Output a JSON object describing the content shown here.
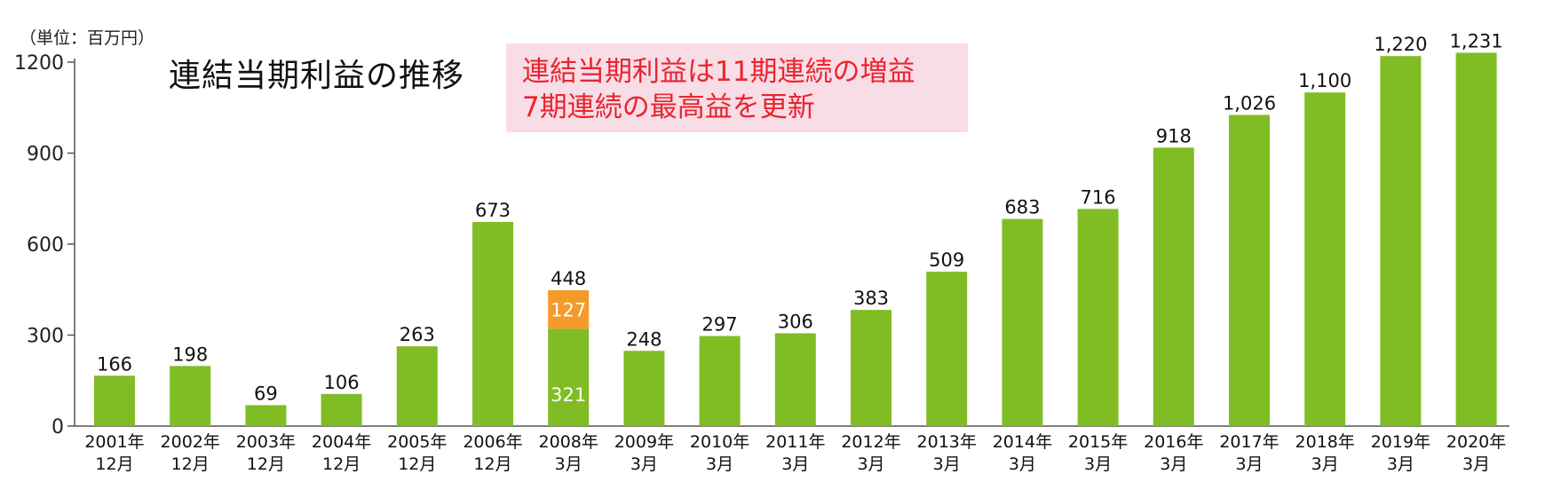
{
  "chart_data": {
    "type": "bar",
    "title": "連結当期利益の推移",
    "unit_label": "（単位：百万円）",
    "callout": [
      "連結当期利益は11期連続の増益",
      "7期連続の最高益を更新"
    ],
    "ylim": [
      0,
      1200
    ],
    "yticks": [
      0,
      300,
      600,
      900,
      1200
    ],
    "categories": [
      [
        "2001年",
        "12月"
      ],
      [
        "2002年",
        "12月"
      ],
      [
        "2003年",
        "12月"
      ],
      [
        "2004年",
        "12月"
      ],
      [
        "2005年",
        "12月"
      ],
      [
        "2006年",
        "12月"
      ],
      [
        "2008年",
        "3月"
      ],
      [
        "2009年",
        "3月"
      ],
      [
        "2010年",
        "3月"
      ],
      [
        "2011年",
        "3月"
      ],
      [
        "2012年",
        "3月"
      ],
      [
        "2013年",
        "3月"
      ],
      [
        "2014年",
        "3月"
      ],
      [
        "2015年",
        "3月"
      ],
      [
        "2016年",
        "3月"
      ],
      [
        "2017年",
        "3月"
      ],
      [
        "2018年",
        "3月"
      ],
      [
        "2019年",
        "3月"
      ],
      [
        "2020年",
        "3月"
      ]
    ],
    "values": [
      166,
      198,
      69,
      106,
      263,
      673,
      448,
      248,
      297,
      306,
      383,
      509,
      683,
      716,
      918,
      1026,
      1100,
      1220,
      1231
    ],
    "value_labels": [
      "166",
      "198",
      "69",
      "106",
      "263",
      "673",
      "448",
      "248",
      "297",
      "306",
      "383",
      "509",
      "683",
      "716",
      "918",
      "1,026",
      "1,100",
      "1,220",
      "1,231"
    ],
    "segments": {
      "index": 6,
      "parts": [
        321,
        127
      ],
      "part_labels": [
        "321",
        "127"
      ]
    },
    "colors": {
      "bar": "#80bd24",
      "segment": "#f39a2b",
      "callout_text": "#e8252f",
      "callout_bg": "#f9dde6"
    }
  }
}
